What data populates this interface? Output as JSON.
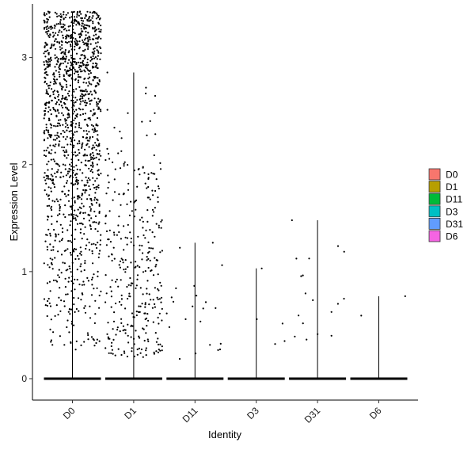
{
  "chart_data": {
    "type": "scatter",
    "subtype": "violin-jitter",
    "title": "",
    "xlabel": "Identity",
    "ylabel": "Expression Level",
    "ylim": [
      -0.2,
      3.5
    ],
    "y_ticks": [
      "0",
      "1",
      "2",
      "3"
    ],
    "grid": false,
    "legend_position": "right",
    "categories": [
      "D0",
      "D1",
      "D11",
      "D3",
      "D31",
      "D6"
    ],
    "colors": [
      "#F8766D",
      "#B79F00",
      "#00BA38",
      "#00BFC4",
      "#619CFF",
      "#F564E3"
    ],
    "groups": [
      {
        "name": "D0",
        "max": 3.43,
        "n_nonzero": 1400,
        "nonzero_range": [
          0.25,
          3.43
        ],
        "density": "heavy"
      },
      {
        "name": "D1",
        "max": 2.86,
        "n_nonzero": 340,
        "nonzero_range": [
          0.2,
          2.86
        ],
        "density": "moderate"
      },
      {
        "name": "D11",
        "max": 1.27,
        "n_nonzero": 22,
        "nonzero_range": [
          0.18,
          1.27
        ],
        "density": "sparse"
      },
      {
        "name": "D3",
        "max": 1.03,
        "n_nonzero": 5,
        "nonzero_range": [
          0.32,
          1.03
        ],
        "density": "sparse"
      },
      {
        "name": "D31",
        "max": 1.48,
        "n_nonzero": 18,
        "nonzero_range": [
          0.32,
          1.48
        ],
        "density": "sparse"
      },
      {
        "name": "D6",
        "max": 0.77,
        "n_nonzero": 2,
        "nonzero_range": [
          0.53,
          0.77
        ],
        "density": "sparse"
      }
    ],
    "legend": [
      "D0",
      "D1",
      "D11",
      "D3",
      "D31",
      "D6"
    ]
  }
}
